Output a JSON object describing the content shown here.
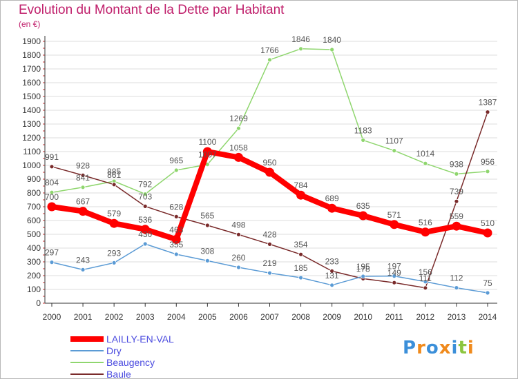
{
  "chart_data": {
    "type": "line",
    "title": "Evolution du Montant de la Dette par Habitant",
    "subtitle": "(en €)",
    "xlabel": "",
    "ylabel": "",
    "categories": [
      "2000",
      "2001",
      "2002",
      "2003",
      "2004",
      "2005",
      "2006",
      "2007",
      "2008",
      "2009",
      "2010",
      "2011",
      "2012",
      "2013",
      "2014"
    ],
    "ylim": [
      0,
      1900
    ],
    "yticks": [
      0,
      100,
      200,
      300,
      400,
      500,
      600,
      700,
      800,
      900,
      1000,
      1100,
      1200,
      1300,
      1400,
      1500,
      1600,
      1700,
      1800,
      1900
    ],
    "grid": "horizontal",
    "legend_position": "bottom-left",
    "series": [
      {
        "name": "LAILLY-EN-VAL",
        "color": "#ff0000",
        "values": [
          700,
          667,
          579,
          536,
          463,
          1100,
          1058,
          950,
          784,
          689,
          635,
          571,
          516,
          559,
          510
        ]
      },
      {
        "name": "Dry",
        "color": "#5b9bd5",
        "values": [
          297,
          243,
          293,
          430,
          355,
          308,
          260,
          219,
          185,
          131,
          195,
          197,
          156,
          112,
          75
        ]
      },
      {
        "name": "Beaugency",
        "color": "#8fd66e",
        "values": [
          804,
          841,
          885,
          792,
          965,
          1007,
          1269,
          1766,
          1846,
          1840,
          1183,
          1107,
          1014,
          938,
          956
        ]
      },
      {
        "name": "Baule",
        "color": "#7a2b2b",
        "values": [
          991,
          928,
          861,
          703,
          628,
          565,
          498,
          428,
          354,
          233,
          178,
          149,
          111,
          739,
          1387
        ]
      }
    ],
    "labels": [
      [
        "700",
        "667",
        "579",
        "536",
        "463",
        "1100",
        "1058",
        "950",
        "784",
        "689",
        "635",
        "571",
        "516",
        "559",
        "510"
      ],
      [
        "297",
        "243",
        "293",
        "430",
        "355",
        "308",
        "260",
        "219",
        "185",
        "131",
        "195",
        "197",
        "156",
        "112",
        "75"
      ],
      [
        "804",
        "841",
        "885",
        "792",
        "965",
        "1007",
        "1269",
        "1766",
        "1846",
        "1840",
        "1183",
        "1107",
        "1014",
        "938",
        "956"
      ],
      [
        "991",
        "928",
        "861",
        "703",
        "628",
        "565",
        "498",
        "428",
        "354",
        "233",
        "178",
        "149",
        "111",
        "739",
        "1387"
      ]
    ]
  },
  "logo": {
    "text": "Proxiti",
    "letters": [
      "P",
      "r",
      "o",
      "x",
      "i",
      "t",
      "i"
    ],
    "colors": [
      "#3b8fd9",
      "#f08a1c",
      "#3b8fd9",
      "#f08a1c",
      "#3b8fd9",
      "#8cc63f",
      "#f08a1c"
    ]
  }
}
